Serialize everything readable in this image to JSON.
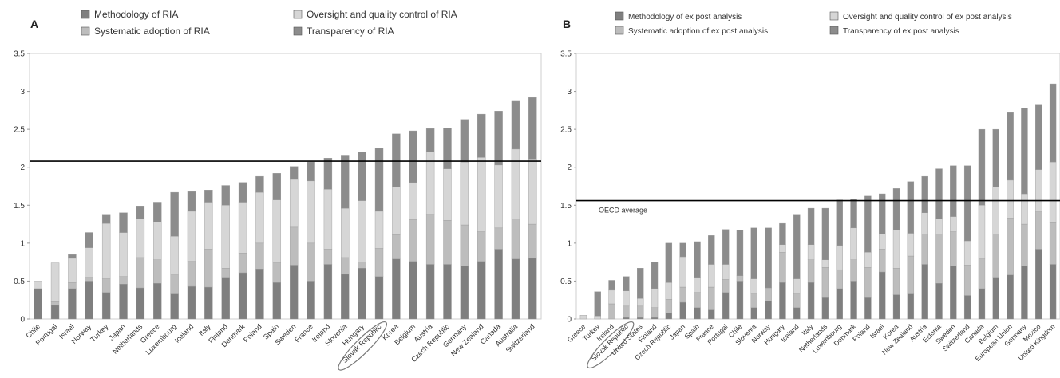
{
  "colors": {
    "methodology": "#7f7f7f",
    "oversight": "#d6d6d6",
    "systematic": "#bdbdbd",
    "transparency": "#8c8c8c",
    "average_line": "#000000"
  },
  "chart_data": [
    {
      "panel": "A",
      "type": "bar",
      "stacked": true,
      "ylim": [
        0,
        3.5
      ],
      "yticks": [
        "0",
        "0.5",
        "1",
        "1.5",
        "2",
        "2.5",
        "3",
        "3.5"
      ],
      "average_value": 2.08,
      "average_label": "",
      "legend": [
        "Methodology of RIA",
        "Oversight and quality control of RIA",
        "Systematic adoption of RIA",
        "Transparency of RIA"
      ],
      "highlighted_category": "Slovak Republic",
      "categories": [
        "Chile",
        "Portugal",
        "Israel",
        "Norway",
        "Turkey",
        "Japan",
        "Netherlands",
        "Greece",
        "Luxembourg",
        "Iceland",
        "Italy",
        "Finland",
        "Denmark",
        "Poland",
        "Spain",
        "Sweden",
        "France",
        "Ireland",
        "Slovenia",
        "Hungary",
        "Slovak Republic",
        "Korea",
        "Belgium",
        "Austria",
        "Czech Republic",
        "Germany",
        "New Zealand",
        "Canada",
        "Australia",
        "Switzerland"
      ],
      "series": [
        {
          "name": "Methodology of RIA",
          "values": [
            0.4,
            0.18,
            0.4,
            0.5,
            0.35,
            0.46,
            0.41,
            0.47,
            0.33,
            0.43,
            0.42,
            0.55,
            0.61,
            0.66,
            0.48,
            0.71,
            0.5,
            0.72,
            0.59,
            0.67,
            0.56,
            0.79,
            0.76,
            0.72,
            0.72,
            0.7,
            0.76,
            0.92,
            0.79,
            0.8
          ]
        },
        {
          "name": "Systematic adoption of RIA",
          "values": [
            0.0,
            0.05,
            0.08,
            0.05,
            0.18,
            0.1,
            0.4,
            0.31,
            0.26,
            0.33,
            0.5,
            0.12,
            0.26,
            0.34,
            0.26,
            0.5,
            0.5,
            0.2,
            0.22,
            0.08,
            0.37,
            0.32,
            0.55,
            0.66,
            0.58,
            0.54,
            0.39,
            0.28,
            0.53,
            0.45
          ]
        },
        {
          "name": "Oversight and quality control of RIA",
          "values": [
            0.1,
            0.51,
            0.32,
            0.39,
            0.73,
            0.58,
            0.51,
            0.5,
            0.5,
            0.66,
            0.62,
            0.83,
            0.67,
            0.67,
            0.83,
            0.63,
            0.82,
            0.79,
            0.65,
            0.81,
            0.49,
            0.63,
            0.49,
            0.82,
            0.68,
            0.83,
            0.98,
            0.83,
            0.92,
            0.85
          ]
        },
        {
          "name": "Transparency of RIA",
          "values": [
            0.0,
            0.0,
            0.05,
            0.2,
            0.12,
            0.26,
            0.17,
            0.26,
            0.58,
            0.26,
            0.16,
            0.26,
            0.26,
            0.21,
            0.35,
            0.17,
            0.25,
            0.41,
            0.7,
            0.64,
            0.83,
            0.7,
            0.68,
            0.31,
            0.54,
            0.56,
            0.57,
            0.71,
            0.63,
            0.82
          ]
        }
      ]
    },
    {
      "panel": "B",
      "type": "bar",
      "stacked": true,
      "ylim": [
        0,
        3.5
      ],
      "yticks": [
        "0",
        "0.5",
        "1",
        "1.5",
        "2",
        "2.5",
        "3",
        "3.5"
      ],
      "average_value": 1.56,
      "average_label": "OECD average",
      "legend": [
        "Methodology of ex post analysis",
        "Oversight and quality control of ex post analysis",
        "Systematic adoption of ex post analysis",
        "Transparency of ex post analysis"
      ],
      "highlighted_category": "Slovak Republic",
      "categories": [
        "Greece",
        "Turkey",
        "Ireland",
        "Slovak Republic",
        "United States",
        "Finland",
        "Czech Republic",
        "Japan",
        "Spain",
        "France",
        "Portugal",
        "Chile",
        "Slovenia",
        "Norway",
        "Hungary",
        "Iceland",
        "Italy",
        "Netherlands",
        "Luxembourg",
        "Denmark",
        "Poland",
        "Israel",
        "Korea",
        "New Zealand",
        "Austria",
        "Estonia",
        "Sweden",
        "Switzerland",
        "Canada",
        "Belgium",
        "European Union",
        "Germany",
        "Mexico",
        "United Kingdom"
      ],
      "series": [
        {
          "name": "Methodology of ex post analysis",
          "values": [
            0.0,
            0.0,
            0.0,
            0.02,
            0.02,
            0.02,
            0.08,
            0.22,
            0.15,
            0.12,
            0.35,
            0.5,
            0.15,
            0.24,
            0.48,
            0.15,
            0.48,
            0.28,
            0.4,
            0.5,
            0.28,
            0.62,
            0.32,
            0.33,
            0.72,
            0.47,
            0.7,
            0.31,
            0.4,
            0.55,
            0.58,
            0.7,
            0.92,
            0.72
          ]
        },
        {
          "name": "Systematic adoption of ex post analysis",
          "values": [
            0.0,
            0.0,
            0.2,
            0.15,
            0.15,
            0.13,
            0.18,
            0.2,
            0.2,
            0.3,
            0.17,
            0.07,
            0.18,
            0.17,
            0.4,
            0.18,
            0.3,
            0.4,
            0.25,
            0.28,
            0.4,
            0.3,
            0.35,
            0.5,
            0.4,
            0.65,
            0.45,
            0.4,
            0.4,
            0.57,
            0.75,
            0.55,
            0.5,
            0.55
          ]
        },
        {
          "name": "Oversight and quality control of ex post analysis",
          "values": [
            0.05,
            0.04,
            0.18,
            0.2,
            0.1,
            0.25,
            0.22,
            0.4,
            0.2,
            0.3,
            0.2,
            0.0,
            0.2,
            0.0,
            0.1,
            0.2,
            0.2,
            0.1,
            0.32,
            0.42,
            0.2,
            0.2,
            0.5,
            0.3,
            0.28,
            0.2,
            0.2,
            0.32,
            0.7,
            0.62,
            0.5,
            0.4,
            0.55,
            0.8
          ]
        },
        {
          "name": "Transparency of ex post analysis",
          "values": [
            0.0,
            0.32,
            0.13,
            0.19,
            0.4,
            0.35,
            0.52,
            0.18,
            0.47,
            0.38,
            0.46,
            0.6,
            0.67,
            0.79,
            0.28,
            0.85,
            0.48,
            0.68,
            0.6,
            0.38,
            0.74,
            0.53,
            0.55,
            0.68,
            0.48,
            0.66,
            0.67,
            0.99,
            1.0,
            0.76,
            0.89,
            1.13,
            0.85,
            1.03
          ]
        }
      ]
    }
  ]
}
